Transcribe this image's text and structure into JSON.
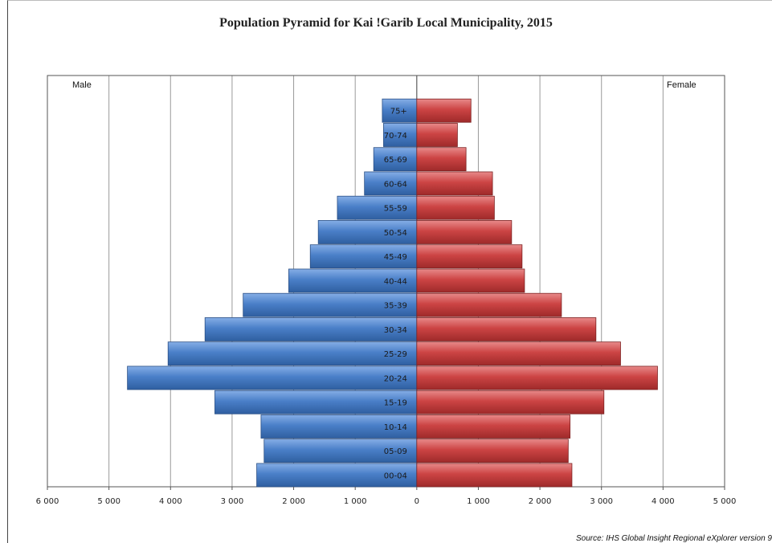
{
  "chart_data": {
    "type": "bar",
    "orientation": "horizontal",
    "title": "Population Pyramid for Kai !Garib Local Municipality, 2015",
    "categories": [
      "00-04",
      "05-09",
      "10-14",
      "15-19",
      "20-24",
      "25-29",
      "30-34",
      "35-39",
      "40-44",
      "45-49",
      "50-54",
      "55-59",
      "60-64",
      "65-69",
      "70-74",
      "75+"
    ],
    "series": [
      {
        "name": "Male",
        "values": [
          2600,
          2480,
          2530,
          3280,
          4700,
          4040,
          3440,
          2820,
          2080,
          1730,
          1600,
          1290,
          850,
          700,
          540,
          560
        ],
        "color": "#4a7fc8"
      },
      {
        "name": "Female",
        "values": [
          2520,
          2460,
          2490,
          3040,
          3910,
          3310,
          2910,
          2350,
          1750,
          1710,
          1540,
          1260,
          1230,
          800,
          660,
          880
        ],
        "color": "#cc4444"
      }
    ],
    "xlim": [
      -6000,
      5000
    ],
    "xticks": [
      -6000,
      -5000,
      -4000,
      -3000,
      -2000,
      -1000,
      0,
      1000,
      2000,
      3000,
      4000,
      5000
    ],
    "xtick_labels": [
      "6 000",
      "5 000",
      "4 000",
      "3 000",
      "2 000",
      "1 000",
      "0",
      "1 000",
      "2 000",
      "3 000",
      "4 000",
      "5 000"
    ],
    "grid": true,
    "legend_left": "Male",
    "legend_right": "Female",
    "source": "Source: IHS Global Insight Regional eXplorer version 9"
  }
}
